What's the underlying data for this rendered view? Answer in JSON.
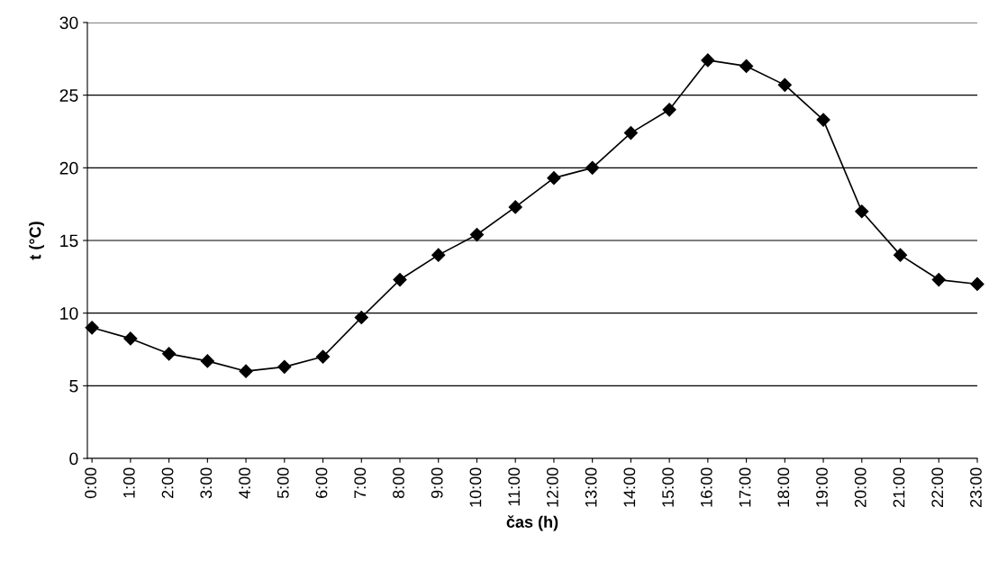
{
  "chart_data": {
    "type": "line",
    "xlabel": "čas (h)",
    "ylabel": "t (°C)",
    "categories": [
      "0:00",
      "1:00",
      "2:00",
      "3:00",
      "4:00",
      "5:00",
      "6:00",
      "7:00",
      "8:00",
      "9:00",
      "10:00",
      "11:00",
      "12:00",
      "13:00",
      "14:00",
      "15:00",
      "16:00",
      "17:00",
      "18:00",
      "19:00",
      "20:00",
      "21:00",
      "22:00",
      "23:00"
    ],
    "series": [
      {
        "color": "#000000",
        "values": [
          9.0,
          8.25,
          7.2,
          6.7,
          6.0,
          6.3,
          7.0,
          9.7,
          12.3,
          14.0,
          15.4,
          17.3,
          19.3,
          20.0,
          22.4,
          24.0,
          27.4,
          27.0,
          25.7,
          23.3,
          17.0,
          14.0,
          12.3,
          12.0
        ]
      }
    ],
    "ylim": [
      0,
      30
    ],
    "yticks": [
      0,
      5,
      10,
      15,
      20,
      25,
      30
    ],
    "grid": "y",
    "marker": "diamond",
    "line_style": "solid",
    "legend": false
  }
}
